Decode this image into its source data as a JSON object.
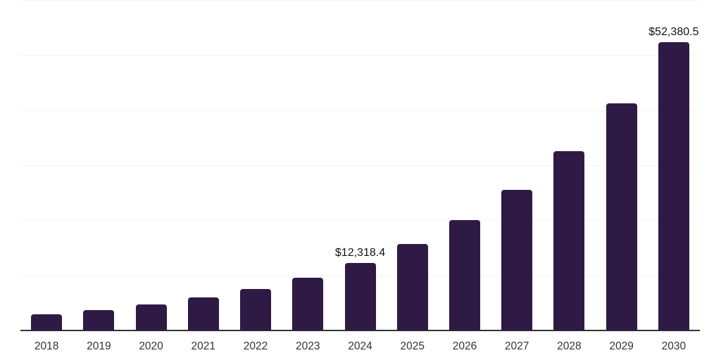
{
  "chart_data": {
    "type": "bar",
    "title": "",
    "xlabel": "",
    "ylabel": "",
    "categories": [
      "2018",
      "2019",
      "2020",
      "2021",
      "2022",
      "2023",
      "2024",
      "2025",
      "2026",
      "2027",
      "2028",
      "2029",
      "2030"
    ],
    "values": [
      2900,
      3700,
      4750,
      6000,
      7500,
      9600,
      12318.4,
      15750,
      20050,
      25500,
      32500,
      41250,
      52380.5
    ],
    "data_labels": [
      "",
      "",
      "",
      "",
      "",
      "",
      "$12,318.4",
      "",
      "",
      "",
      "",
      "",
      "$52,380.5"
    ],
    "ylim": [
      0,
      60000
    ],
    "gridline_step": 10000,
    "grid": "horizontal",
    "legend_position": "none",
    "colors": {
      "bar": "#2e1a45",
      "gridline": "#f2f2f2",
      "axis_line": "#333333",
      "tick_label": "#333333",
      "data_label": "#111111",
      "background": "#ffffff"
    }
  }
}
